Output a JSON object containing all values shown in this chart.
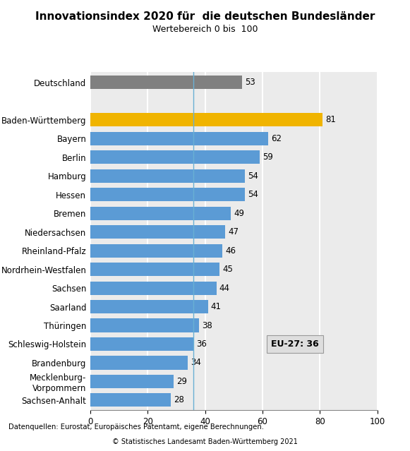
{
  "title": "Innovationsindex 2020 für  die deutschen Bundesländer",
  "subtitle": "Wertebereich 0 bis  100",
  "categories": [
    "Deutschland",
    "",
    "Baden-Württemberg",
    "Bayern",
    "Berlin",
    "Hamburg",
    "Hessen",
    "Bremen",
    "Niedersachsen",
    "Rheinland-Pfalz",
    "Nordrhein-Westfalen",
    "Sachsen",
    "Saarland",
    "Thüringen",
    "Schleswig-Holstein",
    "Brandenburg",
    "Mecklenburg-\nVorpommern",
    "Sachsen-Anhalt"
  ],
  "values": [
    53,
    0,
    81,
    62,
    59,
    54,
    54,
    49,
    47,
    46,
    45,
    44,
    41,
    38,
    36,
    34,
    29,
    28
  ],
  "bar_colors": [
    "#808080",
    "#ffffff",
    "#f0b400",
    "#5b9bd5",
    "#5b9bd5",
    "#5b9bd5",
    "#5b9bd5",
    "#5b9bd5",
    "#5b9bd5",
    "#5b9bd5",
    "#5b9bd5",
    "#5b9bd5",
    "#5b9bd5",
    "#5b9bd5",
    "#5b9bd5",
    "#5b9bd5",
    "#5b9bd5",
    "#5b9bd5"
  ],
  "xlim": [
    0,
    100
  ],
  "vline_x": 36,
  "vline_color": "#6ab0d4",
  "eu27_label": "EU-27: 36",
  "footnote": "Datenquellen: Eurostat, Europäisches Patentamt, eigene Berechnungen.",
  "copyright": "© Statistisches Landesamt Baden-Württemberg 2021",
  "bg_color": "#ffffff",
  "plot_bg_color": "#ebebeb",
  "grid_color": "#ffffff",
  "title_fontsize": 11,
  "subtitle_fontsize": 9,
  "label_fontsize": 8.5,
  "tick_fontsize": 8.5,
  "annot_fontsize": 8.5,
  "bar_height": 0.72
}
